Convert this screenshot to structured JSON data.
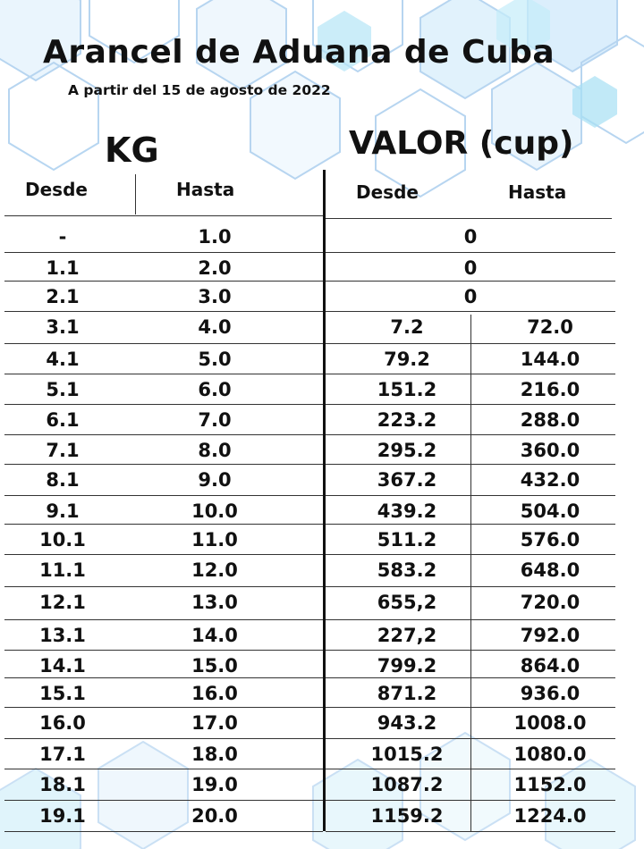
{
  "document": {
    "title": "Arancel de Aduana de Cuba",
    "subtitle": "A partir del 15 de agosto de 2022",
    "kg_label": "KG",
    "valor_label": "VALOR (cup)",
    "kg_columns": {
      "desde": "Desde",
      "hasta": "Hasta"
    },
    "valor_columns": {
      "desde": "Desde",
      "hasta": "Hasta"
    }
  },
  "rows": [
    {
      "kg_desde": "-",
      "kg_hasta": "1.0",
      "valor_single": "0"
    },
    {
      "kg_desde": "1.1",
      "kg_hasta": "2.0",
      "valor_single": "0"
    },
    {
      "kg_desde": "2.1",
      "kg_hasta": "3.0",
      "valor_single": "0"
    },
    {
      "kg_desde": "3.1",
      "kg_hasta": "4.0",
      "valor_desde": "7.2",
      "valor_hasta": "72.0"
    },
    {
      "kg_desde": "4.1",
      "kg_hasta": "5.0",
      "valor_desde": "79.2",
      "valor_hasta": "144.0"
    },
    {
      "kg_desde": "5.1",
      "kg_hasta": "6.0",
      "valor_desde": "151.2",
      "valor_hasta": "216.0"
    },
    {
      "kg_desde": "6.1",
      "kg_hasta": "7.0",
      "valor_desde": "223.2",
      "valor_hasta": "288.0"
    },
    {
      "kg_desde": "7.1",
      "kg_hasta": "8.0",
      "valor_desde": "295.2",
      "valor_hasta": "360.0"
    },
    {
      "kg_desde": "8.1",
      "kg_hasta": "9.0",
      "valor_desde": "367.2",
      "valor_hasta": "432.0"
    },
    {
      "kg_desde": "9.1",
      "kg_hasta": "10.0",
      "valor_desde": "439.2",
      "valor_hasta": "504.0"
    },
    {
      "kg_desde": "10.1",
      "kg_hasta": "11.0",
      "valor_desde": "511.2",
      "valor_hasta": "576.0"
    },
    {
      "kg_desde": "11.1",
      "kg_hasta": "12.0",
      "valor_desde": "583.2",
      "valor_hasta": "648.0"
    },
    {
      "kg_desde": "12.1",
      "kg_hasta": "13.0",
      "valor_desde": "655,2",
      "valor_hasta": "720.0"
    },
    {
      "kg_desde": "13.1",
      "kg_hasta": "14.0",
      "valor_desde": "227,2",
      "valor_hasta": "792.0"
    },
    {
      "kg_desde": "14.1",
      "kg_hasta": "15.0",
      "valor_desde": "799.2",
      "valor_hasta": "864.0"
    },
    {
      "kg_desde": "15.1",
      "kg_hasta": "16.0",
      "valor_desde": "871.2",
      "valor_hasta": "936.0"
    },
    {
      "kg_desde": "16.0",
      "kg_hasta": "17.0",
      "valor_desde": "943.2",
      "valor_hasta": "1008.0"
    },
    {
      "kg_desde": "17.1",
      "kg_hasta": "18.0",
      "valor_desde": "1015.2",
      "valor_hasta": "1080.0"
    },
    {
      "kg_desde": "18.1",
      "kg_hasta": "19.0",
      "valor_desde": "1087.2",
      "valor_hasta": "1152.0"
    },
    {
      "kg_desde": "19.1",
      "kg_hasta": "20.0",
      "valor_desde": "1159.2",
      "valor_hasta": "1224.0"
    }
  ],
  "colors": {
    "hex_stroke": "#9fc8ec",
    "hex_fill": "#cfe9fb",
    "hex_fill_accent": "#8fd9f3",
    "text": "#111111",
    "lines": "#333333"
  }
}
